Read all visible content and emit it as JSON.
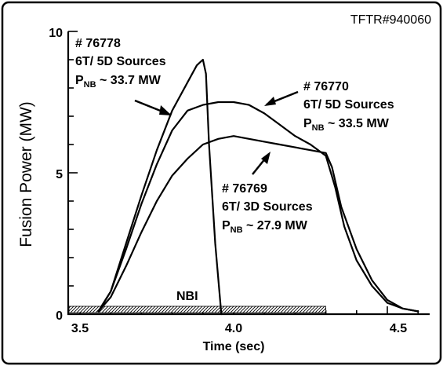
{
  "chart_data": {
    "type": "line",
    "corner_label": "TFTR#940060",
    "xlabel": "Time (sec)",
    "ylabel": "Fusion Power (MW)",
    "xlim": [
      3.5,
      4.6
    ],
    "ylim": [
      0,
      10
    ],
    "xticks": [
      {
        "value": 3.5,
        "label": "3.5"
      },
      {
        "value": 4.0,
        "label": "4.0"
      },
      {
        "value": 4.5,
        "label": "4.5"
      }
    ],
    "yticks": [
      {
        "value": 0,
        "label": "0"
      },
      {
        "value": 5,
        "label": "5"
      },
      {
        "value": 10,
        "label": "10"
      }
    ],
    "nbi": {
      "label": "NBI",
      "x_start": 3.5,
      "x_end": 4.3
    },
    "series": [
      {
        "shot": "# 76778",
        "sources": "6T/ 5D Sources",
        "pnb_prefix": "P",
        "pnb_sub": "NB",
        "pnb_value": " ~ 33.7 MW",
        "x": [
          3.56,
          3.6,
          3.65,
          3.7,
          3.75,
          3.8,
          3.85,
          3.88,
          3.9,
          3.91,
          3.92,
          3.94,
          3.96
        ],
        "y": [
          0.1,
          0.8,
          2.5,
          4.2,
          5.8,
          7.2,
          8.2,
          8.8,
          9.0,
          8.5,
          6.0,
          2.5,
          0.0
        ]
      },
      {
        "shot": "# 76770",
        "sources": "6T/ 5D Sources",
        "pnb_prefix": "P",
        "pnb_sub": "NB",
        "pnb_value": " ~ 33.5 MW",
        "x": [
          3.56,
          3.6,
          3.65,
          3.7,
          3.75,
          3.8,
          3.85,
          3.9,
          3.95,
          4.0,
          4.05,
          4.1,
          4.15,
          4.2,
          4.25,
          4.3,
          4.33,
          4.36,
          4.4,
          4.45,
          4.5,
          4.55,
          4.6
        ],
        "y": [
          0.1,
          0.8,
          2.3,
          3.9,
          5.3,
          6.5,
          7.2,
          7.4,
          7.5,
          7.5,
          7.4,
          7.1,
          6.7,
          6.3,
          6.0,
          5.6,
          4.5,
          3.1,
          1.9,
          1.0,
          0.4,
          0.2,
          0.1
        ]
      },
      {
        "shot": "# 76769",
        "sources": "6T/ 3D Sources",
        "pnb_prefix": "P",
        "pnb_sub": "NB",
        "pnb_value": " ~ 27.9 MW",
        "x": [
          3.56,
          3.6,
          3.65,
          3.7,
          3.75,
          3.8,
          3.85,
          3.9,
          3.95,
          4.0,
          4.05,
          4.1,
          4.15,
          4.2,
          4.25,
          4.3,
          4.32,
          4.35,
          4.4,
          4.45,
          4.5,
          4.55,
          4.6
        ],
        "y": [
          0.1,
          0.6,
          1.7,
          2.9,
          4.0,
          4.9,
          5.5,
          6.0,
          6.2,
          6.3,
          6.2,
          6.1,
          6.0,
          5.9,
          5.8,
          5.7,
          5.2,
          3.8,
          2.3,
          1.2,
          0.5,
          0.2,
          0.1
        ]
      }
    ]
  }
}
